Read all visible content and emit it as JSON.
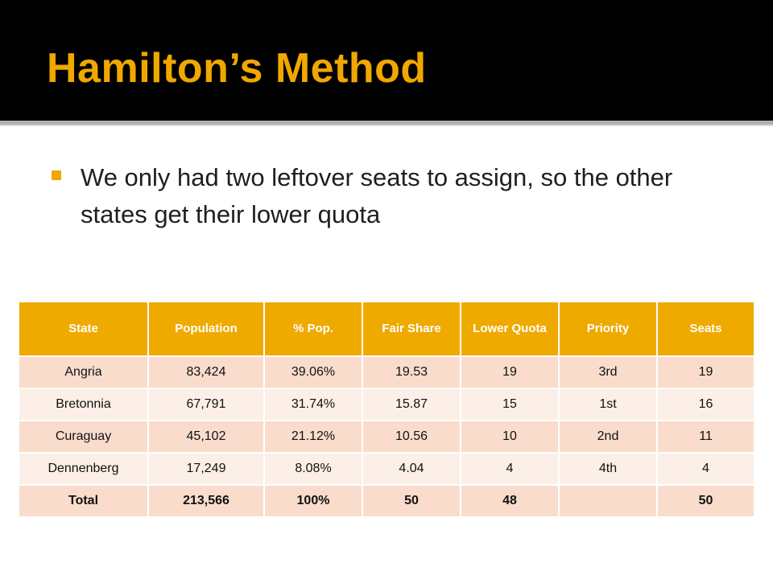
{
  "slide": {
    "title": "Hamilton’s Method",
    "bullet": "We only had two leftover seats to assign, so the other states get their lower quota"
  },
  "table": {
    "headers": [
      "State",
      "Population",
      "% Pop.",
      "Fair Share",
      "Lower Quota",
      "Priority",
      "Seats"
    ],
    "rows": [
      [
        "Angria",
        "83,424",
        "39.06%",
        "19.53",
        "19",
        "3rd",
        "19"
      ],
      [
        "Bretonnia",
        "67,791",
        "31.74%",
        "15.87",
        "15",
        "1st",
        "16"
      ],
      [
        "Curaguay",
        "45,102",
        "21.12%",
        "10.56",
        "10",
        "2nd",
        "11"
      ],
      [
        "Dennenberg",
        "17,249",
        "8.08%",
        "4.04",
        "4",
        "4th",
        "4"
      ]
    ],
    "total": [
      "Total",
      "213,566",
      "100%",
      "50",
      "48",
      "",
      "50"
    ]
  },
  "colors": {
    "title": "#f0a800",
    "header_fill": "#efaa00",
    "row_dark": "#f9dccc",
    "row_light": "#fcefe7",
    "total_seats": "#22aa22"
  }
}
